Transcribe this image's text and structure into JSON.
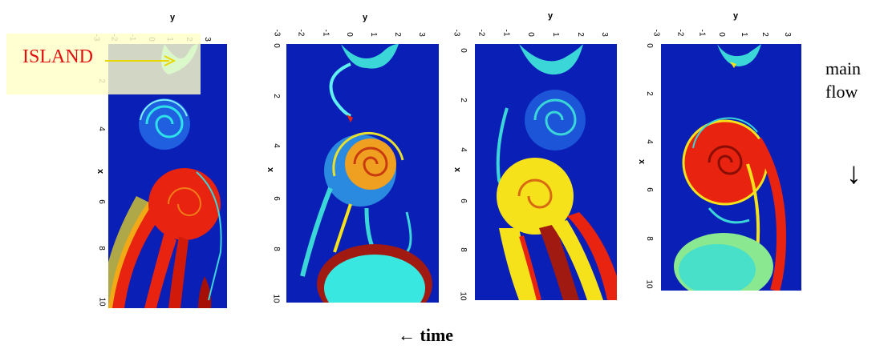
{
  "island_label": "ISLAND",
  "flow": {
    "line1": "main",
    "line2": "flow",
    "arrow": "↓"
  },
  "time_label": "← time",
  "axis": {
    "y_label": "y",
    "x_label": "x",
    "y_ticks": [
      "-3",
      "-2",
      "-1",
      "0",
      "1",
      "2",
      "3"
    ],
    "x_ticks": [
      "0",
      "2",
      "4",
      "6",
      "8",
      "10"
    ]
  },
  "panels": [
    {
      "name": "panel-1"
    },
    {
      "name": "panel-2"
    },
    {
      "name": "panel-3"
    },
    {
      "name": "panel-4"
    }
  ],
  "colors": {
    "field_bg": "#0a1fb5",
    "hot": "#e8230f",
    "warm": "#f5e21a",
    "cool": "#38e8e0"
  }
}
